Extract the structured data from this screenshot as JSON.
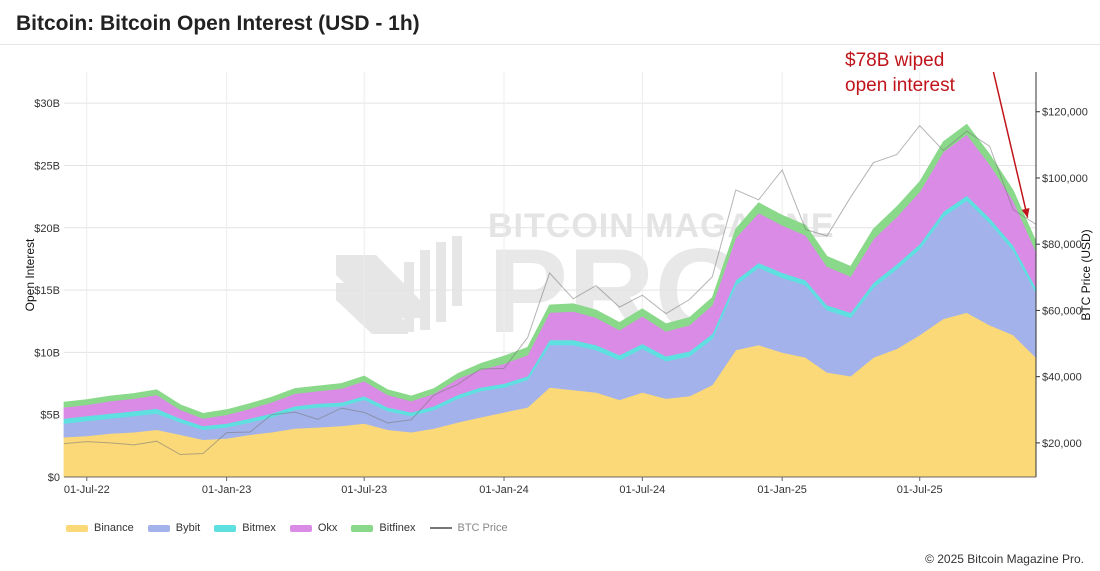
{
  "title": "Bitcoin: Bitcoin Open Interest (USD - 1h)",
  "copyright": "© 2025 Bitcoin Magazine Pro.",
  "watermark": {
    "line1": "BITCOIN MAGAZINE",
    "line2": "PRO"
  },
  "chart_data": {
    "type": "area",
    "stacked": true,
    "x": [
      "2022-06-01",
      "2022-07-01",
      "2022-08-01",
      "2022-09-01",
      "2022-10-01",
      "2022-11-01",
      "2022-12-01",
      "2023-01-01",
      "2023-02-01",
      "2023-03-01",
      "2023-04-01",
      "2023-05-01",
      "2023-06-01",
      "2023-07-01",
      "2023-08-01",
      "2023-09-01",
      "2023-10-01",
      "2023-11-01",
      "2023-12-01",
      "2024-01-01",
      "2024-02-01",
      "2024-03-01",
      "2024-04-01",
      "2024-05-01",
      "2024-06-01",
      "2024-07-01",
      "2024-08-01",
      "2024-09-01",
      "2024-10-01",
      "2024-11-01",
      "2024-12-01",
      "2025-01-01",
      "2025-02-01",
      "2025-03-01",
      "2025-04-01",
      "2025-05-01",
      "2025-06-01",
      "2025-07-01",
      "2025-08-01",
      "2025-09-01",
      "2025-10-01",
      "2025-11-01",
      "2025-12-01"
    ],
    "x_tick_labels": [
      "01-Jul-22",
      "01-Jan-23",
      "01-Jul-23",
      "01-Jan-24",
      "01-Jul-24",
      "01-Jan-25",
      "01-Jul-25"
    ],
    "x_tick_dates": [
      "2022-07-01",
      "2023-01-01",
      "2023-07-01",
      "2024-01-01",
      "2024-07-01",
      "2025-01-01",
      "2025-07-01"
    ],
    "series": [
      {
        "name": "Binance",
        "color": "#fbd979",
        "values": [
          3.2,
          3.3,
          3.5,
          3.6,
          3.8,
          3.4,
          3.0,
          3.1,
          3.4,
          3.6,
          3.9,
          4.0,
          4.1,
          4.3,
          3.8,
          3.6,
          3.9,
          4.4,
          4.8,
          5.2,
          5.6,
          7.2,
          7.0,
          6.8,
          6.2,
          6.8,
          6.3,
          6.5,
          7.4,
          10.2,
          10.6,
          10.0,
          9.6,
          8.4,
          8.1,
          9.6,
          10.3,
          11.4,
          12.7,
          13.2,
          12.2,
          11.4,
          9.6
        ]
      },
      {
        "name": "Bybit",
        "color": "#a3b2ea",
        "values": [
          1.1,
          1.2,
          1.2,
          1.3,
          1.3,
          1.0,
          0.8,
          0.9,
          1.0,
          1.2,
          1.5,
          1.6,
          1.6,
          1.9,
          1.5,
          1.3,
          1.5,
          1.9,
          2.1,
          2.0,
          2.2,
          3.4,
          3.6,
          3.4,
          3.2,
          3.5,
          3.0,
          3.2,
          3.7,
          5.2,
          6.2,
          6.0,
          5.8,
          5.0,
          4.7,
          5.6,
          6.4,
          6.9,
          8.2,
          9.0,
          8.2,
          6.8,
          5.2
        ]
      },
      {
        "name": "Bitmex",
        "color": "#5fe0e0",
        "values": [
          0.4,
          0.4,
          0.4,
          0.4,
          0.4,
          0.3,
          0.3,
          0.3,
          0.3,
          0.3,
          0.3,
          0.3,
          0.3,
          0.3,
          0.3,
          0.3,
          0.3,
          0.3,
          0.3,
          0.3,
          0.3,
          0.4,
          0.4,
          0.4,
          0.4,
          0.4,
          0.4,
          0.4,
          0.4,
          0.4,
          0.4,
          0.4,
          0.4,
          0.4,
          0.4,
          0.4,
          0.4,
          0.4,
          0.4,
          0.4,
          0.4,
          0.4,
          0.4
        ]
      },
      {
        "name": "Okx",
        "color": "#d98be6",
        "values": [
          0.9,
          0.9,
          1.0,
          1.0,
          1.1,
          0.7,
          0.6,
          0.7,
          0.8,
          0.9,
          1.0,
          1.0,
          1.1,
          1.2,
          1.0,
          0.9,
          1.0,
          1.3,
          1.4,
          1.6,
          1.7,
          2.2,
          2.3,
          2.2,
          2.0,
          2.2,
          2.0,
          2.1,
          2.3,
          3.4,
          4.0,
          3.8,
          3.6,
          3.1,
          2.9,
          3.5,
          3.8,
          4.2,
          4.8,
          4.9,
          4.3,
          3.6,
          2.9
        ]
      },
      {
        "name": "Bitfinex",
        "color": "#8ad98a",
        "values": [
          0.4,
          0.4,
          0.4,
          0.4,
          0.4,
          0.4,
          0.4,
          0.4,
          0.4,
          0.4,
          0.4,
          0.4,
          0.4,
          0.4,
          0.4,
          0.4,
          0.4,
          0.4,
          0.5,
          0.6,
          0.6,
          0.6,
          0.6,
          0.6,
          0.6,
          0.6,
          0.6,
          0.6,
          0.6,
          0.7,
          0.8,
          0.8,
          0.8,
          0.8,
          0.8,
          0.8,
          0.8,
          0.8,
          0.8,
          0.8,
          0.8,
          0.8,
          0.8
        ]
      }
    ],
    "price_series": {
      "name": "BTC Price",
      "color": "#777777",
      "values": [
        19800,
        20400,
        20000,
        19400,
        20500,
        16500,
        16800,
        23100,
        23300,
        28500,
        29300,
        27100,
        30500,
        29200,
        26000,
        27000,
        34500,
        37700,
        42300,
        42500,
        51800,
        71300,
        63500,
        67500,
        61000,
        64600,
        59000,
        63300,
        70200,
        96400,
        93400,
        102400,
        84400,
        82500,
        94200,
        104600,
        107100,
        115800,
        108300,
        114100,
        109600,
        90400,
        86000
      ]
    },
    "y_left": {
      "label": "Open Interest",
      "min": 0,
      "max": 32.5,
      "ticks": [
        0,
        5,
        10,
        15,
        20,
        25,
        30
      ],
      "tick_labels": [
        "$0",
        "$5B",
        "$10B",
        "$15B",
        "$20B",
        "$25B",
        "$30B"
      ]
    },
    "y_right": {
      "label": "BTC Price (USD)",
      "min": 9700,
      "max": 132000,
      "ticks": [
        20000,
        40000,
        60000,
        80000,
        100000,
        120000
      ],
      "tick_labels": [
        "$20,000",
        "$40,000",
        "$60,000",
        "$80,000",
        "$100,000",
        "$120,000"
      ]
    },
    "grid": true,
    "legend_position": "bottom-left",
    "annotation": {
      "lines": [
        "$78B wiped",
        "open interest"
      ],
      "color": "#c0141b",
      "x": "2025-10-06",
      "arrow_to_x": "2025-11-20",
      "arrow_to_y": 88000
    }
  }
}
